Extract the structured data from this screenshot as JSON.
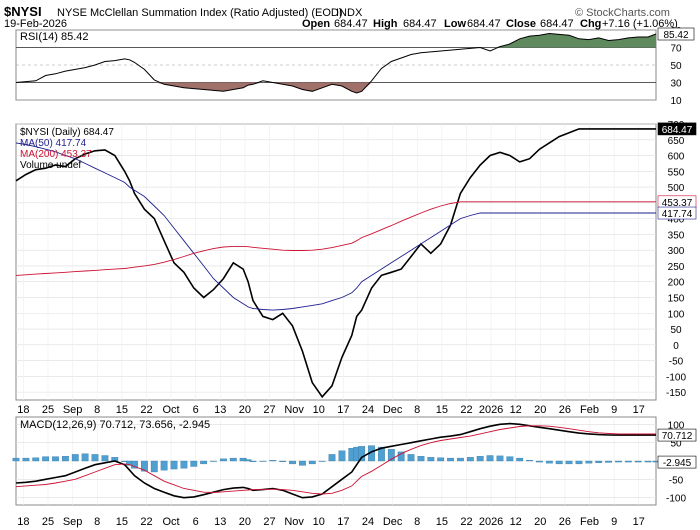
{
  "header": {
    "symbol": "$NYSI",
    "name": "NYSE McClellan Summation Index (Ratio Adjusted) (EOD)",
    "exchange": "INDX",
    "date": "19-Feb-2026",
    "open_label": "Open",
    "open": "684.47",
    "high_label": "High",
    "high": "684.47",
    "low_label": "Low",
    "low": "684.47",
    "close_label": "Close",
    "close": "684.47",
    "chg_label": "Chg",
    "chg": "+7.16 (+1.06%)",
    "watermark": "© StockCharts.com"
  },
  "colors": {
    "price": "#000000",
    "ma50": "#1f1f8f",
    "ma200": "#cc1133",
    "rsi_over": "#5e8a5e",
    "rsi_under": "#a0706b",
    "macd": "#000000",
    "signal": "#cc1133",
    "histogram": "#4f9fd0"
  },
  "chart_data": [
    {
      "type": "line",
      "panel": "RSI",
      "legend": "RSI(14) 85.42",
      "ylim": [
        10,
        90
      ],
      "yticks": [
        "90",
        "70",
        "50",
        "30",
        "10"
      ],
      "levels": [
        70,
        30
      ],
      "last_label": "85.42",
      "x": [
        0,
        10,
        20,
        30,
        40,
        50,
        60,
        70,
        80,
        90,
        100,
        110,
        115,
        120,
        130,
        140,
        150,
        160,
        170,
        180,
        190,
        200,
        210,
        220,
        230,
        235,
        240,
        250,
        260,
        270,
        280,
        290,
        300,
        310,
        320,
        330,
        340,
        345,
        350,
        360,
        370,
        380,
        390,
        400,
        410,
        420,
        430,
        440,
        450,
        460,
        470,
        480,
        490,
        500,
        510,
        520,
        530,
        540,
        550,
        560,
        570,
        580,
        590,
        600,
        610,
        620,
        630,
        640,
        648
      ],
      "values": [
        30,
        31,
        32,
        38,
        40,
        43,
        45,
        47,
        50,
        54,
        55,
        57,
        56,
        53,
        45,
        33,
        28,
        26,
        24,
        23,
        22,
        21,
        20,
        22,
        24,
        27,
        28,
        32,
        30,
        28,
        26,
        22,
        20,
        24,
        28,
        26,
        20,
        18,
        20,
        32,
        46,
        54,
        58,
        62,
        64,
        65,
        66,
        67,
        68,
        69,
        70,
        66,
        71,
        74,
        80,
        83,
        84,
        86,
        85,
        84,
        80,
        79,
        81,
        78,
        79,
        81,
        82,
        82,
        85.42
      ],
      "xlabel": "",
      "ylabel": ""
    },
    {
      "type": "line",
      "panel": "Price",
      "title": "$NYSI NYSE McClellan Summation Index (Ratio Adjusted) (EOD) INDX",
      "ylim": [
        -175,
        700
      ],
      "yticks": [
        "700",
        "650",
        "600",
        "550",
        "500",
        "450",
        "400",
        "350",
        "300",
        "250",
        "200",
        "150",
        "100",
        "50",
        "0",
        "-50",
        "-100",
        "-150"
      ],
      "last_labels": [
        "684.47",
        "453.37",
        "417.74"
      ],
      "x": [
        0,
        10,
        20,
        30,
        40,
        50,
        60,
        70,
        80,
        90,
        100,
        110,
        115,
        120,
        130,
        140,
        150,
        160,
        170,
        180,
        190,
        200,
        210,
        220,
        230,
        235,
        240,
        250,
        260,
        270,
        280,
        290,
        300,
        310,
        320,
        330,
        340,
        345,
        350,
        360,
        370,
        380,
        390,
        400,
        410,
        420,
        430,
        440,
        450,
        460,
        470,
        480,
        490,
        500,
        510,
        520,
        530,
        540,
        550,
        560,
        570,
        580,
        590,
        600,
        610,
        620,
        630,
        640,
        648
      ],
      "x_ticks": [
        "18",
        "25",
        "Sep",
        "8",
        "15",
        "22",
        "Oct",
        "6",
        "13",
        "20",
        "27",
        "Nov",
        "10",
        "17",
        "24",
        "Dec",
        "8",
        "15",
        "22",
        "2026",
        "12",
        "20",
        "26",
        "Feb",
        "9",
        "17"
      ],
      "series": [
        {
          "name": "$NYSI (Daily) 684.47",
          "values": [
            520,
            540,
            555,
            560,
            570,
            565,
            590,
            605,
            615,
            618,
            600,
            550,
            520,
            480,
            430,
            400,
            330,
            260,
            230,
            180,
            150,
            175,
            210,
            260,
            240,
            200,
            140,
            90,
            80,
            100,
            60,
            -20,
            -120,
            -165,
            -130,
            -40,
            30,
            90,
            110,
            180,
            220,
            230,
            240,
            280,
            320,
            290,
            320,
            380,
            480,
            530,
            570,
            600,
            610,
            600,
            580,
            590,
            620,
            640,
            660,
            672,
            684.47,
            684.47,
            684.47,
            684.47,
            684.47,
            684.47,
            684.47,
            684.47,
            684.47
          ]
        },
        {
          "name": "MA(50) 417.74",
          "values": [
            640,
            635,
            628,
            620,
            612,
            600,
            590,
            575,
            560,
            545,
            530,
            515,
            500,
            490,
            470,
            440,
            410,
            370,
            330,
            290,
            250,
            210,
            180,
            150,
            130,
            120,
            115,
            112,
            110,
            112,
            115,
            120,
            125,
            130,
            140,
            150,
            165,
            180,
            200,
            220,
            240,
            260,
            280,
            300,
            320,
            340,
            360,
            380,
            400,
            410,
            417.74,
            417.74,
            417.74,
            417.74,
            417.74,
            417.74,
            417.74,
            417.74,
            417.74,
            417.74,
            417.74,
            417.74,
            417.74,
            417.74,
            417.74,
            417.74,
            417.74,
            417.74,
            417.74
          ]
        },
        {
          "name": "MA(200) 453.37",
          "values": [
            220,
            222,
            224,
            226,
            228,
            230,
            232,
            234,
            236,
            238,
            240,
            242,
            244,
            246,
            250,
            255,
            262,
            270,
            280,
            290,
            298,
            305,
            310,
            312,
            312,
            311,
            309,
            306,
            303,
            300,
            299,
            299,
            300,
            303,
            308,
            315,
            322,
            330,
            340,
            352,
            365,
            378,
            392,
            405,
            418,
            430,
            440,
            448,
            453.37,
            453.37,
            453.37,
            453.37,
            453.37,
            453.37,
            453.37,
            453.37,
            453.37,
            453.37,
            453.37,
            453.37,
            453.37,
            453.37,
            453.37,
            453.37,
            453.37,
            453.37,
            453.37,
            453.37,
            453.37
          ]
        }
      ],
      "legend_extra": "Volume undef",
      "xlabel": "",
      "ylabel": ""
    },
    {
      "type": "line",
      "panel": "MACD",
      "legend": "MACD(12,26,9) 70.712, 73.656, -2.945",
      "ylim": [
        -120,
        120
      ],
      "yticks": [
        "100",
        "50",
        "0",
        "-50",
        "-100"
      ],
      "last_labels": [
        "70.712",
        "-2.945"
      ],
      "x": [
        0,
        10,
        20,
        30,
        40,
        50,
        60,
        70,
        80,
        90,
        100,
        110,
        115,
        120,
        130,
        140,
        150,
        160,
        170,
        180,
        190,
        200,
        210,
        220,
        230,
        235,
        240,
        250,
        260,
        270,
        280,
        290,
        300,
        310,
        320,
        330,
        340,
        345,
        350,
        360,
        370,
        380,
        390,
        400,
        410,
        420,
        430,
        440,
        450,
        460,
        470,
        480,
        490,
        500,
        510,
        520,
        530,
        540,
        550,
        560,
        570,
        580,
        590,
        600,
        610,
        620,
        630,
        640,
        648
      ],
      "series": [
        {
          "name": "MACD",
          "values": [
            -60,
            -58,
            -55,
            -50,
            -45,
            -40,
            -30,
            -20,
            -10,
            -5,
            0,
            -10,
            -25,
            -40,
            -60,
            -75,
            -85,
            -95,
            -100,
            -98,
            -92,
            -85,
            -78,
            -74,
            -72,
            -75,
            -80,
            -78,
            -75,
            -80,
            -90,
            -100,
            -98,
            -90,
            -70,
            -50,
            -30,
            -10,
            10,
            25,
            35,
            40,
            45,
            50,
            55,
            60,
            65,
            68,
            72,
            80,
            88,
            95,
            100,
            102,
            100,
            96,
            92,
            88,
            84,
            80,
            76,
            74,
            72,
            71,
            70.712,
            70.712,
            70.712,
            70.712,
            70.712
          ]
        },
        {
          "name": "Signal",
          "values": [
            -70,
            -68,
            -66,
            -64,
            -60,
            -55,
            -50,
            -40,
            -30,
            -20,
            -10,
            -8,
            -10,
            -15,
            -25,
            -40,
            -55,
            -65,
            -75,
            -80,
            -85,
            -86,
            -84,
            -82,
            -80,
            -79,
            -78,
            -78,
            -77,
            -78,
            -80,
            -84,
            -88,
            -90,
            -88,
            -80,
            -68,
            -55,
            -42,
            -28,
            -12,
            5,
            20,
            32,
            42,
            50,
            56,
            60,
            64,
            68,
            74,
            80,
            86,
            90,
            94,
            96,
            96,
            95,
            92,
            88,
            84,
            80,
            77,
            75,
            73.656,
            73.656,
            73.656,
            73.656,
            73.656
          ]
        },
        {
          "name": "Histogram",
          "values": [
            8,
            8,
            9,
            12,
            12,
            13,
            18,
            20,
            18,
            15,
            10,
            -2,
            -12,
            -20,
            -28,
            -30,
            -25,
            -22,
            -20,
            -15,
            -8,
            0,
            6,
            8,
            8,
            4,
            -2,
            0,
            2,
            -2,
            -8,
            -12,
            -8,
            0,
            18,
            28,
            35,
            38,
            40,
            42,
            38,
            32,
            25,
            18,
            13,
            10,
            9,
            8,
            8,
            10,
            13,
            15,
            14,
            12,
            8,
            2,
            -3,
            -6,
            -8,
            -8,
            -8,
            -6,
            -5,
            -4,
            -2.945,
            -2.945,
            -2.945,
            -2.945,
            -2.945
          ]
        }
      ],
      "xlabel": "",
      "ylabel": ""
    }
  ]
}
